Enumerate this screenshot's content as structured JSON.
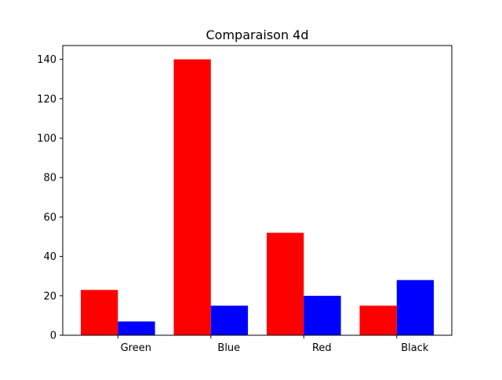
{
  "chart_data": {
    "type": "bar",
    "title": "Comparaison 4d",
    "xlabel": "",
    "ylabel": "",
    "categories": [
      "Green",
      "Blue",
      "Red",
      "Black"
    ],
    "series": [
      {
        "values": [
          23,
          140,
          52,
          15
        ],
        "color": "#ff0000"
      },
      {
        "values": [
          7,
          15,
          20,
          28
        ],
        "color": "#0000ff"
      }
    ],
    "ylim": [
      0,
      147
    ],
    "yticks": [
      "0",
      "20",
      "40",
      "60",
      "80",
      "100",
      "120",
      "140"
    ],
    "grid": false,
    "legend": "none"
  }
}
